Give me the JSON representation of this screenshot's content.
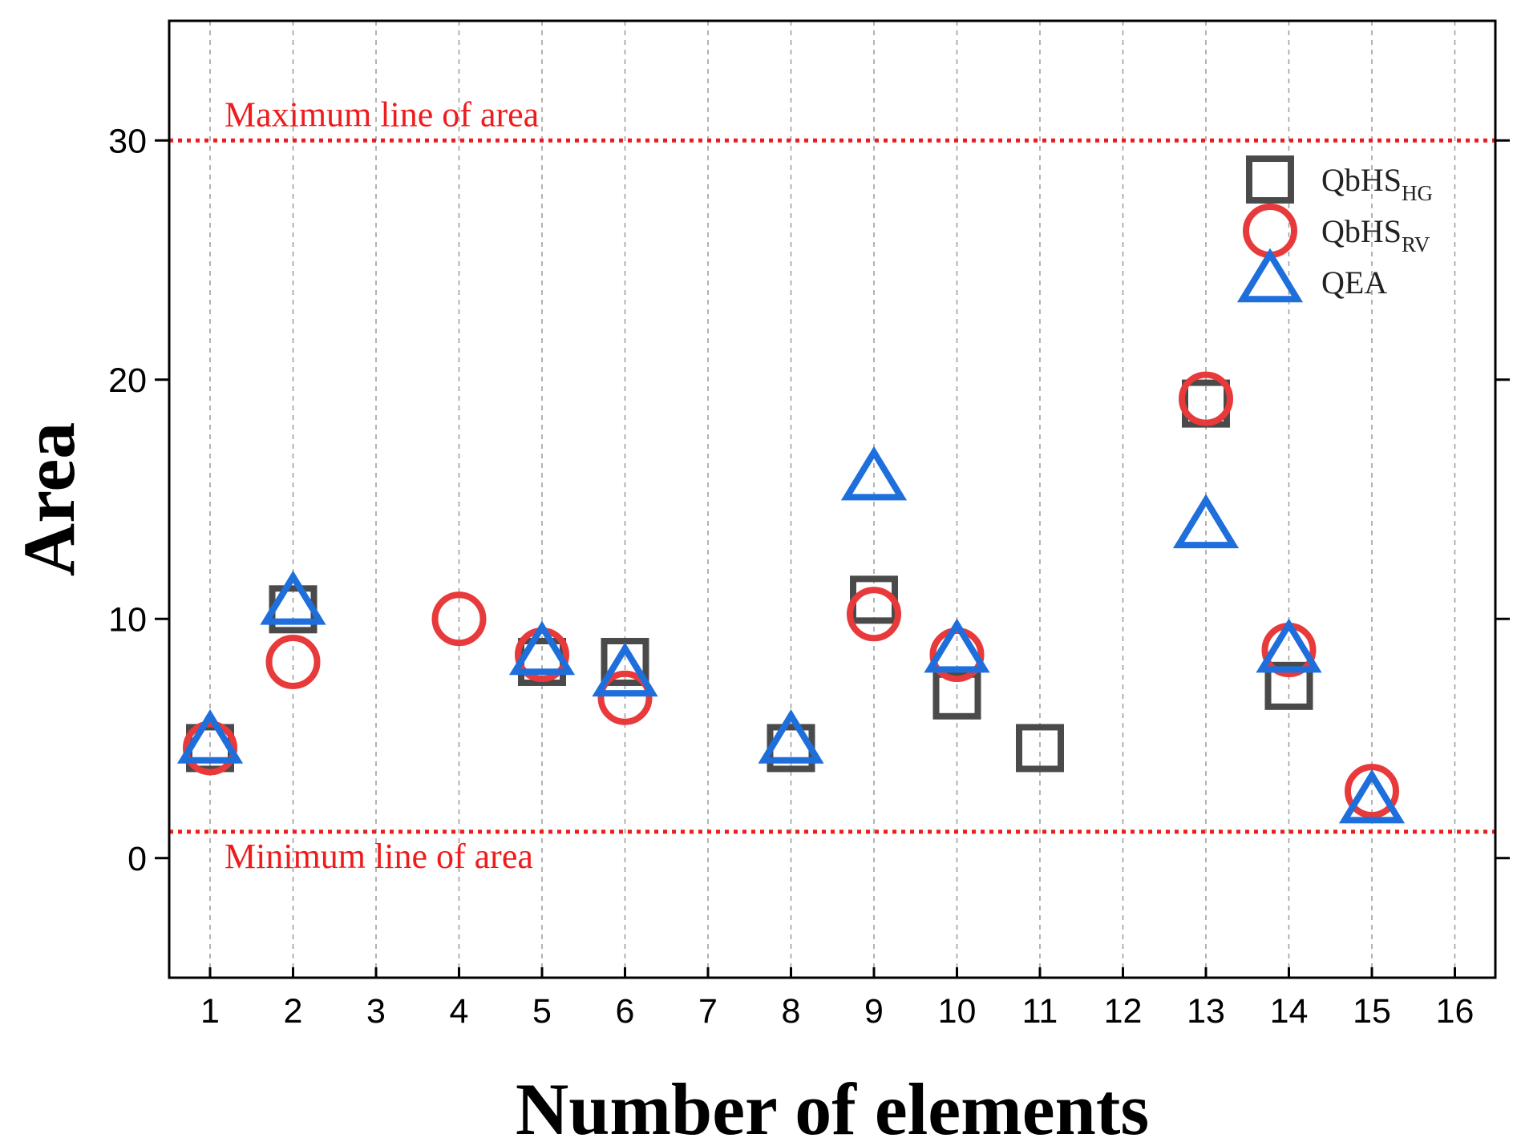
{
  "chart_data": {
    "type": "scatter",
    "title": "",
    "xlabel": "Number of elements",
    "ylabel": "Area",
    "categories": [
      "1",
      "2",
      "3",
      "4",
      "5",
      "6",
      "7",
      "8",
      "9",
      "10",
      "11",
      "12",
      "13",
      "14",
      "15",
      "16"
    ],
    "ylim": [
      -5,
      35
    ],
    "yticks": [
      0,
      10,
      20,
      30
    ],
    "grid": "vertical dashed",
    "legend_position": "top-right",
    "series": [
      {
        "name": "QbHS_HG",
        "label_main": "QbHS",
        "label_sub": "HG",
        "marker": "square",
        "color": "#4a4a4a",
        "points": [
          [
            1,
            4.6
          ],
          [
            2,
            10.4
          ],
          [
            5,
            8.2
          ],
          [
            6,
            8.2
          ],
          [
            8,
            4.6
          ],
          [
            9,
            10.8
          ],
          [
            10,
            6.8
          ],
          [
            11,
            4.6
          ],
          [
            13,
            19.0
          ],
          [
            14,
            7.2
          ]
        ]
      },
      {
        "name": "QbHS_RV",
        "label_main": "QbHS",
        "label_sub": "RV",
        "marker": "circle",
        "color": "#e8393b",
        "points": [
          [
            1,
            4.6
          ],
          [
            2,
            8.2
          ],
          [
            4,
            10.0
          ],
          [
            5,
            8.5
          ],
          [
            6,
            6.7
          ],
          [
            9,
            10.2
          ],
          [
            10,
            8.5
          ],
          [
            13,
            19.2
          ],
          [
            14,
            8.7
          ],
          [
            15,
            2.8
          ]
        ]
      },
      {
        "name": "QEA",
        "label_main": "QEA",
        "label_sub": "",
        "marker": "triangle",
        "color": "#1e6fdc",
        "points": [
          [
            1,
            4.8
          ],
          [
            2,
            10.6
          ],
          [
            5,
            8.5
          ],
          [
            6,
            7.6
          ],
          [
            8,
            4.8
          ],
          [
            9,
            15.8
          ],
          [
            10,
            8.6
          ],
          [
            13,
            13.8
          ],
          [
            14,
            8.6
          ],
          [
            15,
            2.3
          ]
        ]
      }
    ],
    "reference_lines": [
      {
        "name": "max-line",
        "value": 30.0,
        "label": "Maximum line of area",
        "color": "#ee1c1c"
      },
      {
        "name": "min-line",
        "value": 1.1,
        "label": "Minimum line of area",
        "color": "#ee1c1c"
      }
    ]
  }
}
